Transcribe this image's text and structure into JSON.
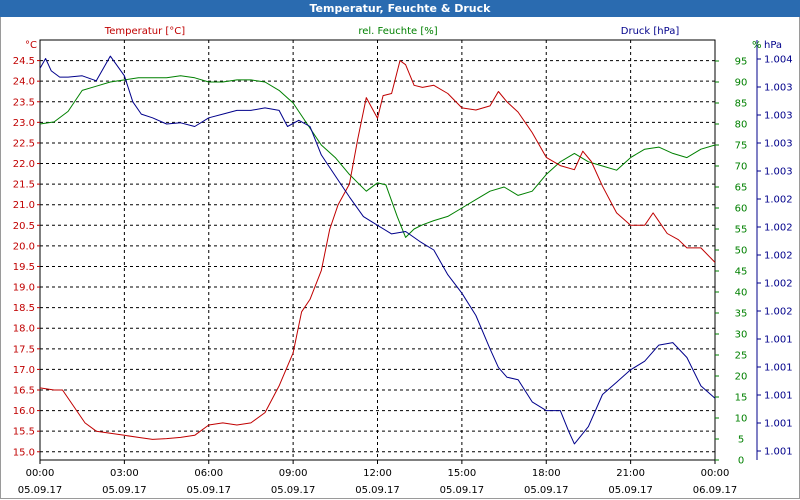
{
  "window": {
    "title": "Temperatur, Feuchte & Druck"
  },
  "colors": {
    "titlebar": "#2a6bb0",
    "temperature": "#c00000",
    "humidity": "#008000",
    "pressure": "#00008b",
    "grid": "#000000"
  },
  "chart_data": {
    "type": "line",
    "title": "Temperatur, Feuchte & Druck",
    "grid": true,
    "x": {
      "tick_times": [
        "00:00",
        "03:00",
        "06:00",
        "09:00",
        "12:00",
        "15:00",
        "18:00",
        "21:00",
        "00:00"
      ],
      "tick_dates": [
        "05.09.17",
        "05.09.17",
        "05.09.17",
        "05.09.17",
        "05.09.17",
        "05.09.17",
        "05.09.17",
        "05.09.17",
        "06.09.17"
      ],
      "range_hours": [
        0,
        24
      ]
    },
    "axes": {
      "temperature": {
        "title": "Temperatur [°C]",
        "unit": "°C",
        "range": [
          14.8,
          25.0
        ],
        "ticks": [
          "24.5",
          "24.0",
          "23.5",
          "23.0",
          "22.5",
          "22.0",
          "21.5",
          "21.0",
          "20.5",
          "20.0",
          "19.5",
          "19.0",
          "18.5",
          "18.0",
          "17.5",
          "17.0",
          "16.5",
          "16.0",
          "15.5",
          "15.0"
        ]
      },
      "humidity": {
        "title": "rel. Feuchte [%]",
        "unit": "%",
        "range": [
          0,
          100
        ],
        "ticks": [
          "95",
          "90",
          "85",
          "80",
          "75",
          "70",
          "65",
          "60",
          "55",
          "50",
          "45",
          "40",
          "35",
          "30",
          "25",
          "20",
          "15",
          "10",
          "5",
          "0"
        ]
      },
      "pressure": {
        "title": "Druck [hPa]",
        "unit": "hPa",
        "range": [
          1000.65,
          1004.05
        ],
        "ticks": [
          "1.004",
          "1.003",
          "1.003",
          "1.003",
          "1.003",
          "1.002",
          "1.002",
          "1.002",
          "1.002",
          "1.002",
          "1.001",
          "1.001",
          "1.001",
          "1.001",
          "1.001"
        ]
      }
    },
    "series": [
      {
        "name": "Temperatur [°C]",
        "axis": "temperature",
        "x": [
          0,
          0.5,
          0.8,
          1.2,
          1.6,
          2,
          2.5,
          3,
          3.5,
          4,
          4.5,
          5,
          5.5,
          6,
          6.5,
          7,
          7.5,
          8,
          8.5,
          9,
          9.3,
          9.6,
          10,
          10.3,
          10.6,
          11,
          11.3,
          11.6,
          12,
          12.2,
          12.5,
          12.8,
          13,
          13.3,
          13.6,
          14,
          14.5,
          15,
          15.5,
          16,
          16.3,
          16.6,
          17,
          17.5,
          18,
          18.5,
          19,
          19.3,
          19.6,
          20,
          20.5,
          21,
          21.5,
          21.8,
          22,
          22.3,
          22.7,
          23,
          23.5,
          24
        ],
        "values": [
          16.55,
          16.5,
          16.5,
          16.1,
          15.7,
          15.5,
          15.45,
          15.4,
          15.35,
          15.3,
          15.32,
          15.35,
          15.4,
          15.65,
          15.7,
          15.65,
          15.7,
          15.95,
          16.6,
          17.4,
          18.4,
          18.7,
          19.4,
          20.4,
          21.0,
          21.5,
          22.6,
          23.6,
          23.1,
          23.65,
          23.7,
          24.5,
          24.4,
          23.9,
          23.85,
          23.9,
          23.7,
          23.35,
          23.3,
          23.4,
          23.75,
          23.5,
          23.25,
          22.75,
          22.15,
          21.95,
          21.85,
          22.3,
          22.05,
          21.45,
          20.8,
          20.5,
          20.5,
          20.8,
          20.6,
          20.3,
          20.15,
          19.95,
          19.95,
          19.6
        ]
      },
      {
        "name": "rel. Feuchte [%]",
        "axis": "humidity",
        "x": [
          0,
          0.5,
          1,
          1.5,
          2,
          2.5,
          3,
          3.5,
          4,
          4.5,
          5,
          5.5,
          6,
          6.5,
          7,
          7.5,
          8,
          8.5,
          9,
          9.5,
          10,
          10.5,
          11,
          11.3,
          11.6,
          12,
          12.3,
          12.7,
          13,
          13.3,
          13.6,
          14,
          14.5,
          15,
          15.5,
          16,
          16.5,
          17,
          17.5,
          18,
          18.5,
          19,
          19.5,
          20,
          20.5,
          21,
          21.5,
          22,
          22.5,
          23,
          23.5,
          24
        ],
        "values": [
          80,
          80.5,
          83,
          88,
          89,
          90,
          90.5,
          91,
          91,
          91,
          91.5,
          91,
          90,
          90,
          90.5,
          90.5,
          90,
          88,
          85,
          80,
          75,
          72,
          68,
          66,
          64,
          66,
          65.5,
          58,
          53,
          55,
          56,
          57,
          58,
          60,
          62,
          64,
          65,
          63,
          64,
          68,
          71,
          73,
          71,
          70,
          69,
          72,
          74,
          74.5,
          73,
          72,
          74,
          75
        ]
      },
      {
        "name": "Druck [hPa]",
        "axis": "pressure",
        "x": [
          0,
          0.2,
          0.4,
          0.7,
          1,
          1.5,
          2,
          2.5,
          3,
          3.3,
          3.6,
          4,
          4.5,
          5,
          5.5,
          6,
          6.5,
          7,
          7.5,
          8,
          8.5,
          8.8,
          9.2,
          9.6,
          10,
          10.5,
          11,
          11.5,
          12,
          12.5,
          13,
          13.5,
          14,
          14.5,
          15,
          15.5,
          16,
          16.3,
          16.6,
          17,
          17.5,
          18,
          18.5,
          18.8,
          19,
          19.5,
          20,
          20.5,
          21,
          21.5,
          22,
          22.5,
          23,
          23.5,
          24
        ],
        "values": [
          1003.82,
          1003.9,
          1003.8,
          1003.75,
          1003.75,
          1003.76,
          1003.72,
          1003.92,
          1003.76,
          1003.55,
          1003.45,
          1003.42,
          1003.37,
          1003.38,
          1003.35,
          1003.42,
          1003.45,
          1003.48,
          1003.48,
          1003.5,
          1003.48,
          1003.35,
          1003.4,
          1003.35,
          1003.12,
          1002.95,
          1002.78,
          1002.62,
          1002.55,
          1002.48,
          1002.5,
          1002.42,
          1002.35,
          1002.15,
          1002.0,
          1001.82,
          1001.55,
          1001.4,
          1001.32,
          1001.3,
          1001.12,
          1001.05,
          1001.05,
          1000.88,
          1000.78,
          1000.92,
          1001.18,
          1001.28,
          1001.38,
          1001.45,
          1001.58,
          1001.6,
          1001.48,
          1001.25,
          1001.15
        ]
      }
    ]
  }
}
